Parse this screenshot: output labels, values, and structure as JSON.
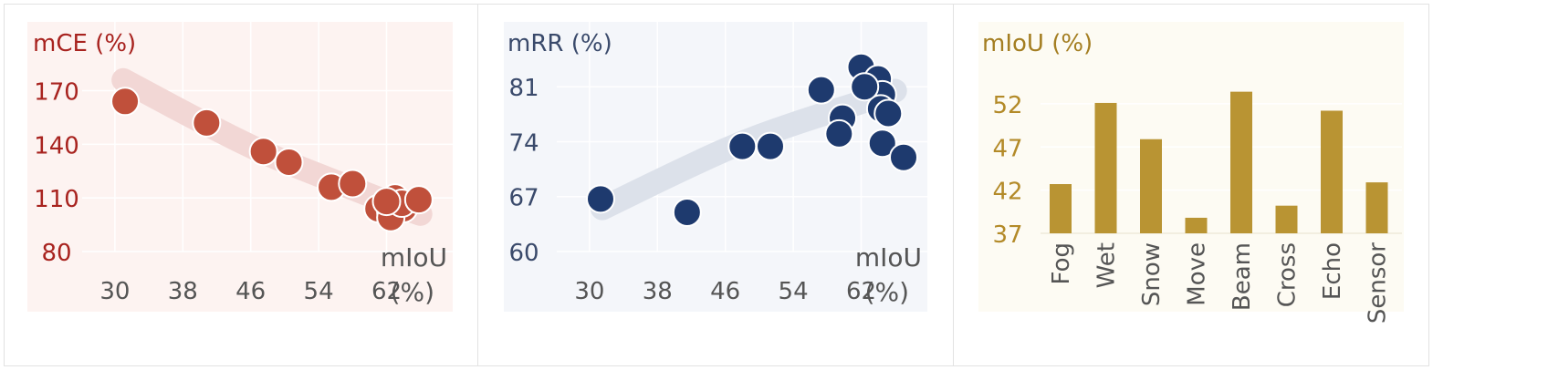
{
  "chart_data": [
    {
      "type": "scatter",
      "panel": "mce",
      "ylabel": "mCE (%)",
      "xlabel": "mIoU",
      "xlabel_unit": "(%)",
      "xticks": [
        30,
        38,
        46,
        54,
        62
      ],
      "yticks": [
        80,
        110,
        140,
        170
      ],
      "xlim": [
        27,
        67
      ],
      "ylim": [
        80,
        182
      ],
      "trend": [
        [
          31,
          176
        ],
        [
          40,
          153
        ],
        [
          48,
          134
        ],
        [
          56,
          119
        ],
        [
          63,
          106
        ],
        [
          66,
          101
        ]
      ],
      "points": [
        {
          "x": 31.2,
          "y": 164
        },
        {
          "x": 40.8,
          "y": 152
        },
        {
          "x": 47.5,
          "y": 136
        },
        {
          "x": 50.5,
          "y": 130
        },
        {
          "x": 55.5,
          "y": 116
        },
        {
          "x": 58.0,
          "y": 118
        },
        {
          "x": 61.0,
          "y": 104
        },
        {
          "x": 62.5,
          "y": 102
        },
        {
          "x": 63.0,
          "y": 110
        },
        {
          "x": 64.0,
          "y": 104
        },
        {
          "x": 62.5,
          "y": 99
        },
        {
          "x": 63.8,
          "y": 107
        },
        {
          "x": 65.8,
          "y": 109
        },
        {
          "x": 62.0,
          "y": 108
        }
      ],
      "colors": {
        "point": "#c0503b",
        "label": "#a8231f",
        "tick": "#a8231f",
        "xtick": "#555555",
        "bg": "#fdf3f1",
        "trend": "#f2d7d5"
      }
    },
    {
      "type": "scatter",
      "panel": "mrr",
      "ylabel": "mRR (%)",
      "xlabel": "mIoU",
      "xlabel_unit": "(%)",
      "xticks": [
        30,
        38,
        46,
        54,
        62
      ],
      "yticks": [
        60,
        67,
        74,
        81
      ],
      "xlim": [
        27,
        67
      ],
      "ylim": [
        60,
        83
      ],
      "trend": [
        [
          31.5,
          65.5
        ],
        [
          40,
          70
        ],
        [
          48,
          74
        ],
        [
          56,
          77
        ],
        [
          62,
          79
        ],
        [
          66,
          80.5
        ]
      ],
      "points": [
        {
          "x": 31.3,
          "y": 66.7
        },
        {
          "x": 41.5,
          "y": 65.0
        },
        {
          "x": 48.0,
          "y": 73.4
        },
        {
          "x": 51.3,
          "y": 73.4
        },
        {
          "x": 57.3,
          "y": 80.6
        },
        {
          "x": 59.8,
          "y": 77.0
        },
        {
          "x": 59.4,
          "y": 75.0
        },
        {
          "x": 62.0,
          "y": 83.5
        },
        {
          "x": 63.5,
          "y": 81.0
        },
        {
          "x": 64.0,
          "y": 82.0
        },
        {
          "x": 64.5,
          "y": 80.0
        },
        {
          "x": 64.3,
          "y": 78.2
        },
        {
          "x": 65.2,
          "y": 77.6
        },
        {
          "x": 64.5,
          "y": 73.8
        },
        {
          "x": 67.0,
          "y": 72.0
        },
        {
          "x": 62.4,
          "y": 81.0
        }
      ],
      "colors": {
        "point": "#1e3a6e",
        "label": "#3a4a6b",
        "tick": "#3a4a6b",
        "xtick": "#555555",
        "bg": "#f4f6fa",
        "trend": "#dce1ea"
      }
    },
    {
      "type": "bar",
      "panel": "miou",
      "ylabel": "mIoU (%)",
      "categories": [
        "Fog",
        "Wet",
        "Snow",
        "Move",
        "Beam",
        "Cross",
        "Echo",
        "Sensor"
      ],
      "values": [
        42.7,
        52.1,
        47.9,
        38.8,
        53.4,
        40.2,
        51.2,
        42.9
      ],
      "yticks": [
        37,
        42,
        47,
        52
      ],
      "ylim": [
        37,
        56
      ],
      "colors": {
        "bar": "#b99433",
        "label": "#a47e22",
        "tick": "#b38a28",
        "xtick": "#555555",
        "bg": "#fdfbf3"
      }
    }
  ]
}
